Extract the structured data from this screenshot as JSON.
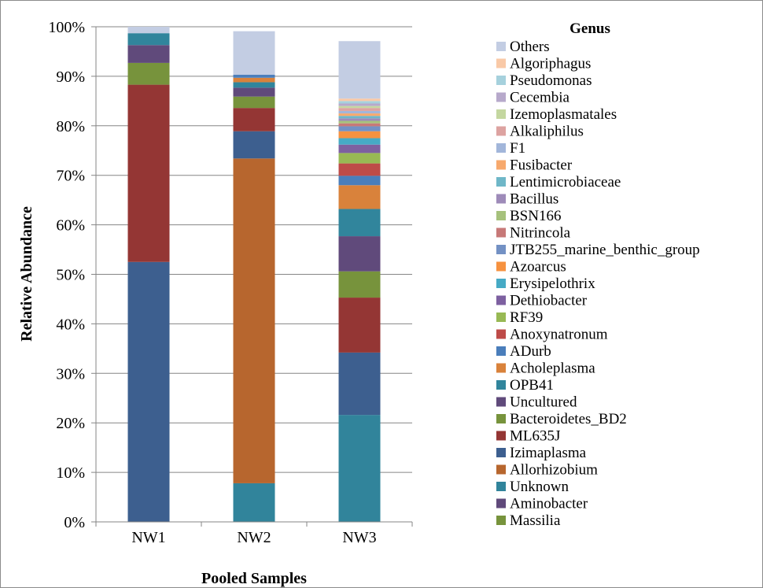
{
  "chart_data": {
    "type": "bar",
    "stacked": true,
    "ylabel": "Relative Abundance",
    "xlabel": "Pooled Samples",
    "ylim": [
      0,
      100
    ],
    "yticks": [
      "0%",
      "10%",
      "20%",
      "30%",
      "40%",
      "50%",
      "60%",
      "70%",
      "80%",
      "90%",
      "100%"
    ],
    "grid": true,
    "legend_position": "right",
    "legend_title": "Genus",
    "categories": [
      "NW1",
      "NW2",
      "NW3"
    ],
    "series": [
      {
        "name": "Massilia",
        "color": "#77933C",
        "values": [
          0,
          0,
          0
        ]
      },
      {
        "name": "Aminobacter",
        "color": "#604A7B",
        "values": [
          0,
          0,
          0
        ]
      },
      {
        "name": "Unknown",
        "color": "#31849B",
        "values": [
          0,
          7.8,
          21.6
        ]
      },
      {
        "name": "Allorhizobium",
        "color": "#B7662E",
        "values": [
          0,
          65.6,
          0
        ]
      },
      {
        "name": "Izimaplasma",
        "color": "#3D5F8F",
        "values": [
          52.5,
          5.5,
          12.6
        ]
      },
      {
        "name": "ML635J",
        "color": "#943634",
        "values": [
          35.8,
          4.7,
          11.1
        ]
      },
      {
        "name": "Bacteroidetes_BD2",
        "color": "#77933C",
        "values": [
          4.4,
          2.3,
          5.3
        ]
      },
      {
        "name": "Uncultured",
        "color": "#604A7B",
        "values": [
          3.6,
          1.8,
          7.1
        ]
      },
      {
        "name": "OPB41",
        "color": "#31859C",
        "values": [
          2.4,
          1.1,
          5.5
        ]
      },
      {
        "name": "Acholeplasma",
        "color": "#D9823B",
        "values": [
          0,
          0.9,
          4.8
        ]
      },
      {
        "name": "ADurb",
        "color": "#4A7EBB",
        "values": [
          0,
          0.6,
          1.9
        ]
      },
      {
        "name": "Anoxynatronum",
        "color": "#BE4B48",
        "values": [
          0,
          0,
          2.5
        ]
      },
      {
        "name": "RF39",
        "color": "#98B954",
        "values": [
          0,
          0,
          2.1
        ]
      },
      {
        "name": "Dethiobacter",
        "color": "#7D60A0",
        "values": [
          0,
          0,
          1.7
        ]
      },
      {
        "name": "Erysipelothrix",
        "color": "#46AAC5",
        "values": [
          0,
          0,
          1.3
        ]
      },
      {
        "name": "Azoarcus",
        "color": "#F69240",
        "values": [
          0,
          0,
          1.4
        ]
      },
      {
        "name": "JTB255_marine_benthic_group",
        "color": "#7391C4",
        "values": [
          0,
          0,
          1.0
        ]
      },
      {
        "name": "Nitrincola",
        "color": "#C77978",
        "values": [
          0,
          0,
          0.6
        ]
      },
      {
        "name": "BSN166",
        "color": "#A6C17C",
        "values": [
          0,
          0,
          0.5
        ]
      },
      {
        "name": "Bacillus",
        "color": "#9E8BB9",
        "values": [
          0,
          0,
          0.5
        ]
      },
      {
        "name": "Lentimicrobiaceae",
        "color": "#6FB7C8",
        "values": [
          0,
          0,
          0.5
        ]
      },
      {
        "name": "Fusibacter",
        "color": "#F7A96D",
        "values": [
          0,
          0,
          0.5
        ]
      },
      {
        "name": "F1",
        "color": "#A2B6DA",
        "values": [
          0,
          0,
          0.5
        ]
      },
      {
        "name": "Alkaliphilus",
        "color": "#DDA3A1",
        "values": [
          0,
          0,
          0.6
        ]
      },
      {
        "name": "Izemoplasmatales",
        "color": "#C4D7A0",
        "values": [
          0,
          0,
          0.4
        ]
      },
      {
        "name": "Cecembia",
        "color": "#B7A9CB",
        "values": [
          0,
          0,
          0.5
        ]
      },
      {
        "name": "Pseudomonas",
        "color": "#A6D1DD",
        "values": [
          0,
          0,
          0.5
        ]
      },
      {
        "name": "Algoriphagus",
        "color": "#F9C9A7",
        "values": [
          0,
          0,
          0.5
        ]
      },
      {
        "name": "Others",
        "color": "#C3CDE3",
        "values": [
          1.3,
          8.8,
          11.6
        ]
      }
    ]
  }
}
